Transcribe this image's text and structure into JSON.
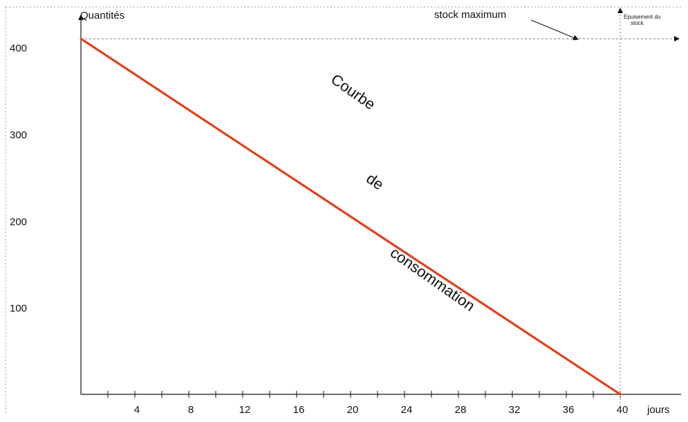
{
  "chart_data": {
    "type": "line",
    "title": "",
    "ylabel": "Quantités",
    "xlabel": "jours",
    "x_ticks": [
      4,
      8,
      12,
      16,
      20,
      24,
      28,
      32,
      36,
      40
    ],
    "y_ticks": [
      100,
      200,
      300,
      400
    ],
    "xlim": [
      0,
      40
    ],
    "ylim": [
      0,
      410
    ],
    "grid": false,
    "series": [
      {
        "name": "Courbe de consommation",
        "color": "#e2401c",
        "x": [
          0,
          40
        ],
        "y": [
          410,
          0
        ]
      }
    ],
    "annotations": {
      "curve_label": [
        "Courbe",
        "de",
        "consommation"
      ],
      "stock_max_label": "stock maximum",
      "stock_max_value": 410,
      "depletion_label": [
        "Epuisement du",
        "stock"
      ],
      "depletion_day": 40
    }
  }
}
